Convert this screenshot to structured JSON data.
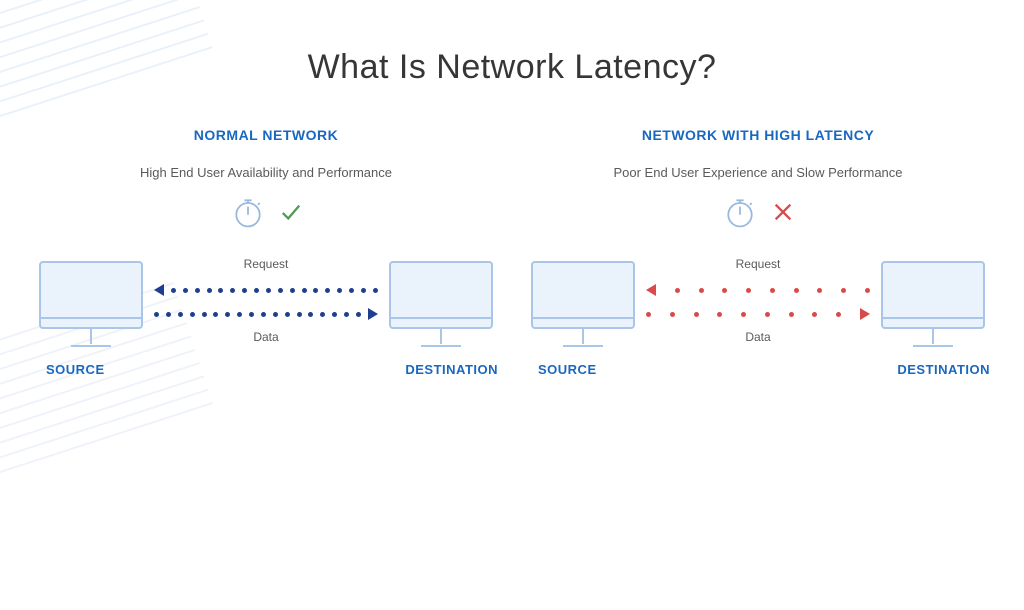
{
  "title": "What Is Network Latency?",
  "title_color": "#363636",
  "left": {
    "heading": "NORMAL NETWORK",
    "heading_color": "#1868c1",
    "subtitle": "High End User Availability and Performance",
    "subtitle_color": "#5a5a5a",
    "clock_stroke": "#9ab9de",
    "status_mark": "check",
    "status_color": "#4f9d53",
    "flow": {
      "request_label": "Request",
      "data_label": "Data",
      "label_color": "#5a5a5a",
      "dot_color": "#1e3f8f",
      "dot_count": 18,
      "dot_gap": "dense",
      "arrow_color": "#1e3f8f"
    },
    "source_label": "SOURCE",
    "destination_label": "DESTINATION",
    "endpoint_label_color": "#1868c1",
    "monitor_stroke": "#a9c6e8",
    "monitor_fill": "#eaf2fb"
  },
  "right": {
    "heading": "NETWORK WITH HIGH LATENCY",
    "heading_color": "#1868c1",
    "subtitle": "Poor End User Experience and Slow Performance",
    "subtitle_color": "#5a5a5a",
    "clock_stroke": "#9ab9de",
    "status_mark": "cross",
    "status_color": "#d94a4a",
    "flow": {
      "request_label": "Request",
      "data_label": "Data",
      "label_color": "#5a5a5a",
      "dot_color": "#d94a4a",
      "dot_count": 9,
      "dot_gap": "sparse",
      "arrow_color": "#d94a4a"
    },
    "source_label": "SOURCE",
    "destination_label": "DESTINATION",
    "endpoint_label_color": "#1868c1",
    "monitor_stroke": "#a9c6e8",
    "monitor_fill": "#eaf2fb"
  },
  "background": "#ffffff",
  "bg_line_color": "#7aa4d6"
}
